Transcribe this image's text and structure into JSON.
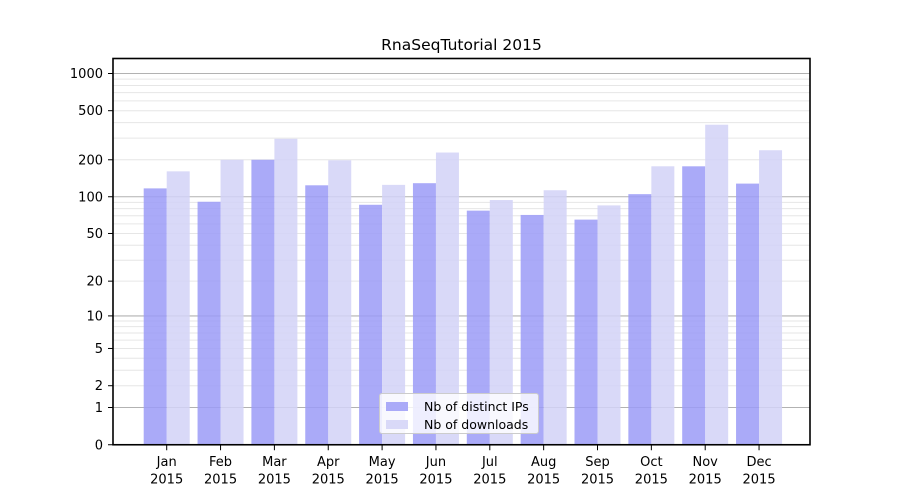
{
  "chart_data": {
    "type": "bar",
    "title": "RnaSeqTutorial 2015",
    "categories": [
      "Jan",
      "Feb",
      "Mar",
      "Apr",
      "May",
      "Jun",
      "Jul",
      "Aug",
      "Sep",
      "Oct",
      "Nov",
      "Dec"
    ],
    "x_tick_year": "2015",
    "series": [
      {
        "name": "Nb of distinct IPs",
        "color": "#aaaaf8",
        "values": [
          117,
          91,
          200,
          124,
          86,
          129,
          77,
          71,
          65,
          105,
          177,
          128
        ]
      },
      {
        "name": "Nb of downloads",
        "color": "#d9d9f8",
        "values": [
          161,
          200,
          296,
          198,
          125,
          229,
          94,
          113,
          85,
          177,
          385,
          239
        ]
      }
    ],
    "xlabel": "",
    "ylabel": "",
    "yscale": "log10(1+v)",
    "ylim": [
      0,
      1000
    ],
    "y_tick_labels": [
      "1000",
      "500",
      "200",
      "100",
      "50",
      "20",
      "10",
      "5",
      "2",
      "1",
      "0"
    ],
    "grid": {
      "on": true,
      "major_at": [
        1,
        10,
        100,
        1000
      ]
    },
    "legend_position": "lower center",
    "colors": {
      "major_grid": "#b2b2b2",
      "minor_grid": "#e6e6e6",
      "axis": "#000000",
      "text": "#000000",
      "legend_border": "#cccccc",
      "background": "#ffffff"
    }
  }
}
